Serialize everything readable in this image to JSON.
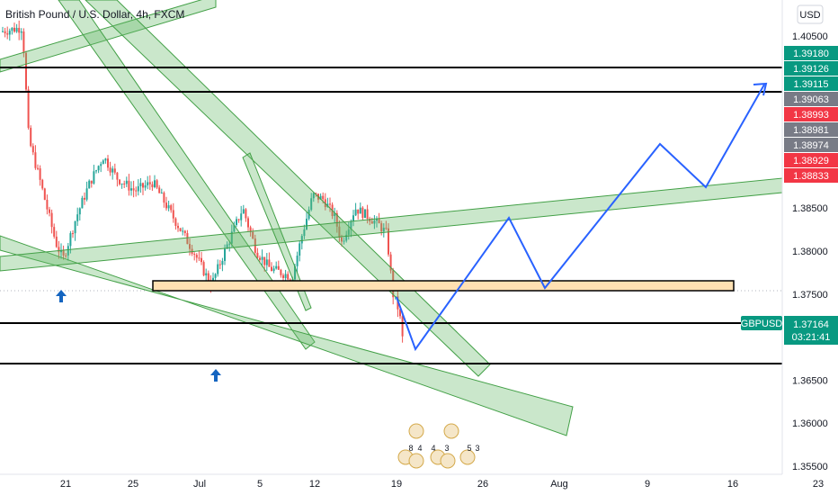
{
  "header": {
    "title": "British Pound / U.S. Dollar, 4h, FXCM"
  },
  "price_axis": {
    "currency": "USD",
    "symbol_tag": "GBPUSD",
    "countdown": "03:21:41"
  },
  "colors": {
    "bull": "#26a69a",
    "bear": "#ef5350",
    "channel_fill": "#66bb6a",
    "channel_stroke": "#43a047",
    "zone_fill": "#ffe0b2",
    "projection": "#2962ff",
    "arrow": "#1565c0",
    "tag_teal": "#089981",
    "tag_gray": "#787b86",
    "tag_red": "#f23645"
  },
  "chart_data": {
    "type": "candlestick",
    "instrument": "British Pound / U.S. Dollar",
    "interval": "4h",
    "source": "FXCM",
    "last_price": 1.37164,
    "ylim": [
      1.355,
      1.408
    ],
    "x_ticks": [
      "21",
      "25",
      "Jul",
      "5",
      "12",
      "19",
      "26",
      "Aug",
      "9",
      "16",
      "23"
    ],
    "y_ticks": [
      "1.40500",
      "1.38500",
      "1.38000",
      "1.37500",
      "1.36500",
      "1.36000",
      "1.35500"
    ],
    "price_tags": [
      {
        "value": "1.39180",
        "color": "tag_teal"
      },
      {
        "value": "1.39126",
        "color": "tag_teal"
      },
      {
        "value": "1.39115",
        "color": "tag_teal"
      },
      {
        "value": "1.39063",
        "color": "tag_gray"
      },
      {
        "value": "1.38993",
        "color": "tag_red"
      },
      {
        "value": "1.38981",
        "color": "tag_gray"
      },
      {
        "value": "1.38974",
        "color": "tag_gray"
      },
      {
        "value": "1.38929",
        "color": "tag_red"
      },
      {
        "value": "1.38833",
        "color": "tag_red"
      }
    ],
    "horizontal_levels": [
      1.3914,
      1.3905,
      1.372,
      1.3673
    ],
    "demand_zone": [
      1.3755,
      1.3768
    ],
    "projection_path": [
      1.372,
      1.369,
      1.3835,
      1.376,
      1.3875,
      1.3845,
      1.391
    ],
    "event_numbers": [
      "8",
      "4",
      "4",
      "3",
      "5",
      "3"
    ]
  }
}
